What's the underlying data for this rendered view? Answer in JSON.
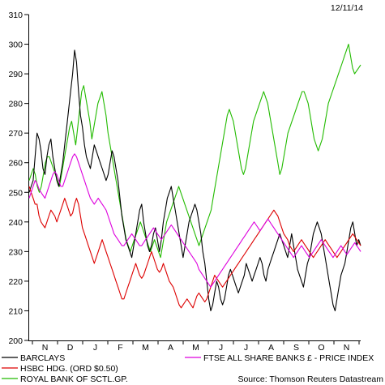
{
  "date_label": "12/11/14",
  "source": "Source: Thomson Reuters Datastream",
  "chart_data": {
    "type": "line",
    "title": "",
    "ylim": [
      200,
      310
    ],
    "yticks": [
      200,
      210,
      220,
      230,
      240,
      250,
      260,
      270,
      280,
      290,
      300,
      310
    ],
    "x_ticks": [
      "N",
      "D",
      "J",
      "F",
      "M",
      "A",
      "M",
      "J",
      "J",
      "A",
      "S",
      "O",
      "N"
    ],
    "grid": false,
    "legend_position": "bottom",
    "series": [
      {
        "name": "BARCLAYS",
        "color": "#000000",
        "values": [
          250,
          252,
          254,
          262,
          270,
          268,
          264,
          258,
          256,
          262,
          266,
          268,
          262,
          258,
          254,
          252,
          256,
          260,
          266,
          272,
          278,
          284,
          290,
          298,
          294,
          284,
          276,
          272,
          266,
          262,
          260,
          258,
          262,
          266,
          264,
          262,
          260,
          258,
          256,
          254,
          256,
          260,
          264,
          262,
          258,
          254,
          248,
          242,
          238,
          234,
          232,
          230,
          228,
          232,
          236,
          240,
          244,
          246,
          240,
          236,
          232,
          230,
          232,
          236,
          238,
          234,
          230,
          234,
          240,
          244,
          248,
          250,
          252,
          248,
          244,
          240,
          236,
          232,
          228,
          232,
          236,
          240,
          242,
          244,
          246,
          244,
          240,
          236,
          230,
          226,
          220,
          214,
          210,
          212,
          216,
          220,
          218,
          214,
          212,
          214,
          218,
          222,
          224,
          222,
          220,
          218,
          216,
          218,
          220,
          222,
          226,
          224,
          222,
          220,
          222,
          224,
          226,
          228,
          226,
          222,
          220,
          224,
          226,
          228,
          230,
          232,
          234,
          236,
          234,
          232,
          230,
          228,
          232,
          236,
          232,
          228,
          224,
          222,
          220,
          218,
          222,
          226,
          228,
          232,
          236,
          238,
          240,
          238,
          236,
          232,
          228,
          224,
          220,
          216,
          212,
          210,
          214,
          218,
          222,
          224,
          226,
          230,
          234,
          238,
          240,
          236,
          232,
          234,
          232
        ]
      },
      {
        "name": "HSBC HDG. (ORD $0.50)",
        "color": "#dd0000",
        "values": [
          252,
          250,
          248,
          246,
          246,
          242,
          240,
          239,
          238,
          240,
          242,
          244,
          243,
          242,
          240,
          242,
          244,
          246,
          248,
          246,
          244,
          242,
          243,
          246,
          248,
          246,
          242,
          238,
          236,
          234,
          232,
          230,
          228,
          226,
          228,
          230,
          232,
          234,
          232,
          230,
          228,
          226,
          224,
          222,
          220,
          218,
          216,
          214,
          214,
          216,
          218,
          220,
          222,
          224,
          226,
          224,
          222,
          221,
          222,
          224,
          226,
          228,
          230,
          228,
          226,
          224,
          223,
          224,
          226,
          224,
          222,
          220,
          219,
          218,
          216,
          214,
          212,
          211,
          212,
          213,
          214,
          213,
          212,
          211,
          213,
          215,
          216,
          215,
          214,
          213,
          214,
          216,
          218,
          220,
          222,
          221,
          220,
          219,
          218,
          219,
          220,
          221,
          222,
          223,
          224,
          225,
          226,
          227,
          228,
          229,
          230,
          231,
          232,
          233,
          234,
          235,
          236,
          237,
          238,
          239,
          240,
          241,
          242,
          243,
          244,
          243,
          242,
          240,
          238,
          236,
          235,
          234,
          232,
          231,
          230,
          231,
          232,
          233,
          234,
          233,
          232,
          231,
          230,
          229,
          228,
          229,
          230,
          231,
          232,
          233,
          234,
          233,
          232,
          231,
          230,
          229,
          228,
          229,
          230,
          231,
          232,
          233,
          234,
          235,
          236,
          235,
          234,
          233,
          232
        ]
      },
      {
        "name": "ROYAL BANK OF SCTL.GP.",
        "color": "#22bb00",
        "values": [
          254,
          256,
          258,
          256,
          252,
          250,
          252,
          256,
          260,
          262,
          262,
          260,
          258,
          256,
          254,
          252,
          256,
          260,
          264,
          268,
          272,
          274,
          270,
          266,
          272,
          278,
          284,
          286,
          282,
          278,
          274,
          268,
          272,
          276,
          280,
          282,
          284,
          280,
          276,
          270,
          266,
          262,
          258,
          254,
          250,
          246,
          242,
          238,
          234,
          232,
          230,
          232,
          234,
          236,
          238,
          240,
          238,
          236,
          234,
          232,
          230,
          232,
          234,
          232,
          230,
          228,
          232,
          236,
          240,
          242,
          244,
          246,
          248,
          250,
          252,
          250,
          248,
          246,
          244,
          242,
          240,
          238,
          236,
          234,
          232,
          234,
          236,
          238,
          240,
          242,
          244,
          248,
          252,
          256,
          260,
          264,
          268,
          272,
          276,
          278,
          276,
          274,
          270,
          266,
          262,
          258,
          256,
          258,
          262,
          266,
          270,
          274,
          276,
          278,
          280,
          282,
          284,
          282,
          280,
          276,
          272,
          268,
          264,
          260,
          256,
          258,
          262,
          266,
          270,
          272,
          274,
          276,
          278,
          280,
          282,
          284,
          284,
          282,
          280,
          276,
          272,
          268,
          266,
          264,
          266,
          268,
          272,
          276,
          280,
          282,
          284,
          286,
          288,
          290,
          292,
          294,
          296,
          298,
          300,
          296,
          292,
          290,
          291,
          292,
          293
        ]
      },
      {
        "name": "FTSE ALL SHARE BANKS £ - PRICE INDEX",
        "color": "#dd00dd",
        "values": [
          248,
          250,
          252,
          254,
          253,
          251,
          250,
          249,
          248,
          250,
          252,
          254,
          256,
          257,
          256,
          254,
          252,
          252,
          254,
          256,
          258,
          260,
          262,
          263,
          262,
          260,
          258,
          256,
          254,
          252,
          250,
          248,
          247,
          246,
          247,
          248,
          247,
          246,
          245,
          244,
          242,
          240,
          238,
          236,
          235,
          234,
          233,
          232,
          232,
          233,
          234,
          235,
          236,
          235,
          234,
          233,
          232,
          232,
          233,
          234,
          235,
          236,
          237,
          238,
          237,
          236,
          235,
          234,
          235,
          236,
          237,
          238,
          239,
          238,
          237,
          236,
          235,
          234,
          233,
          232,
          231,
          230,
          229,
          228,
          227,
          226,
          224,
          223,
          222,
          221,
          220,
          219,
          218,
          219,
          220,
          221,
          222,
          223,
          224,
          225,
          226,
          227,
          228,
          229,
          230,
          231,
          232,
          233,
          234,
          235,
          236,
          237,
          238,
          239,
          240,
          239,
          238,
          237,
          238,
          239,
          240,
          241,
          240,
          239,
          238,
          237,
          236,
          235,
          234,
          233,
          232,
          231,
          230,
          229,
          228,
          229,
          230,
          231,
          232,
          231,
          230,
          229,
          228,
          229,
          230,
          231,
          232,
          233,
          234,
          233,
          232,
          231,
          230,
          229,
          228,
          229,
          230,
          231,
          232,
          231,
          230,
          229,
          230,
          231,
          232,
          233,
          232,
          231,
          230
        ]
      }
    ]
  },
  "legend": [
    {
      "label": "BARCLAYS",
      "color": "#000000"
    },
    {
      "label": "HSBC HDG. (ORD $0.50)",
      "color": "#dd0000"
    },
    {
      "label": "ROYAL BANK OF SCTL.GP.",
      "color": "#22bb00"
    },
    {
      "label": "FTSE ALL SHARE BANKS £ - PRICE INDEX",
      "color": "#dd00dd"
    }
  ]
}
